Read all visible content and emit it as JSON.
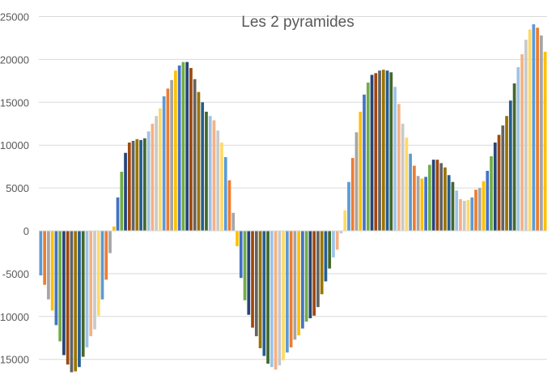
{
  "chart_data": {
    "type": "bar",
    "title": "Les 2 pyramides",
    "xlabel": "",
    "ylabel": "",
    "ylim": [
      -17000,
      25000
    ],
    "y_ticks": [
      -15000,
      -10000,
      -5000,
      0,
      5000,
      10000,
      15000,
      20000,
      25000
    ],
    "y_tick_labels": [
      "-15000",
      "-10000",
      "-5000",
      "0",
      "5000",
      "10000",
      "15000",
      "20000",
      "25000"
    ],
    "grid": true,
    "legend": "none",
    "palette": [
      "#5b9bd5",
      "#ed7d31",
      "#a5a5a5",
      "#ffc000",
      "#4472c4",
      "#70ad47",
      "#264478",
      "#9e480e",
      "#636363",
      "#997300",
      "#255e91",
      "#43682b",
      "#9dc3e6",
      "#f4b183",
      "#c9c9c9",
      "#ffd966"
    ],
    "values": [
      -5200,
      -6300,
      -8000,
      -9300,
      -11000,
      -12900,
      -14500,
      -15600,
      -16500,
      -16400,
      -15900,
      -14700,
      -13600,
      -12300,
      -11500,
      -9900,
      -8000,
      -5700,
      -2600,
      500,
      3900,
      6900,
      9100,
      10300,
      10500,
      10700,
      10600,
      10800,
      11600,
      12500,
      13400,
      14300,
      15700,
      16600,
      17600,
      18700,
      19300,
      19700,
      19700,
      19000,
      17700,
      16200,
      15000,
      13900,
      13400,
      12900,
      11700,
      10300,
      8600,
      5900,
      2100,
      -1800,
      -5500,
      -8100,
      -9800,
      -11300,
      -12300,
      -13700,
      -14600,
      -15500,
      -15900,
      -16200,
      -15700,
      -15100,
      -14200,
      -13600,
      -12700,
      -12200,
      -11400,
      -10600,
      -10200,
      -9900,
      -8900,
      -7400,
      -5900,
      -4400,
      -3100,
      -2200,
      -300,
      2400,
      5700,
      8500,
      11500,
      13900,
      15900,
      17300,
      18200,
      18400,
      18700,
      18800,
      18700,
      18500,
      16800,
      14800,
      12500,
      10900,
      9000,
      7600,
      6400,
      6100,
      6300,
      7700,
      8300,
      8300,
      7900,
      7400,
      6500,
      5700,
      4700,
      3700,
      3500,
      3600,
      3900,
      4800,
      5000,
      5800,
      7000,
      8700,
      10300,
      11200,
      12300,
      13400,
      15200,
      17200,
      19100,
      20600,
      22300,
      23500,
      24100,
      23700,
      22800,
      20900
    ]
  }
}
